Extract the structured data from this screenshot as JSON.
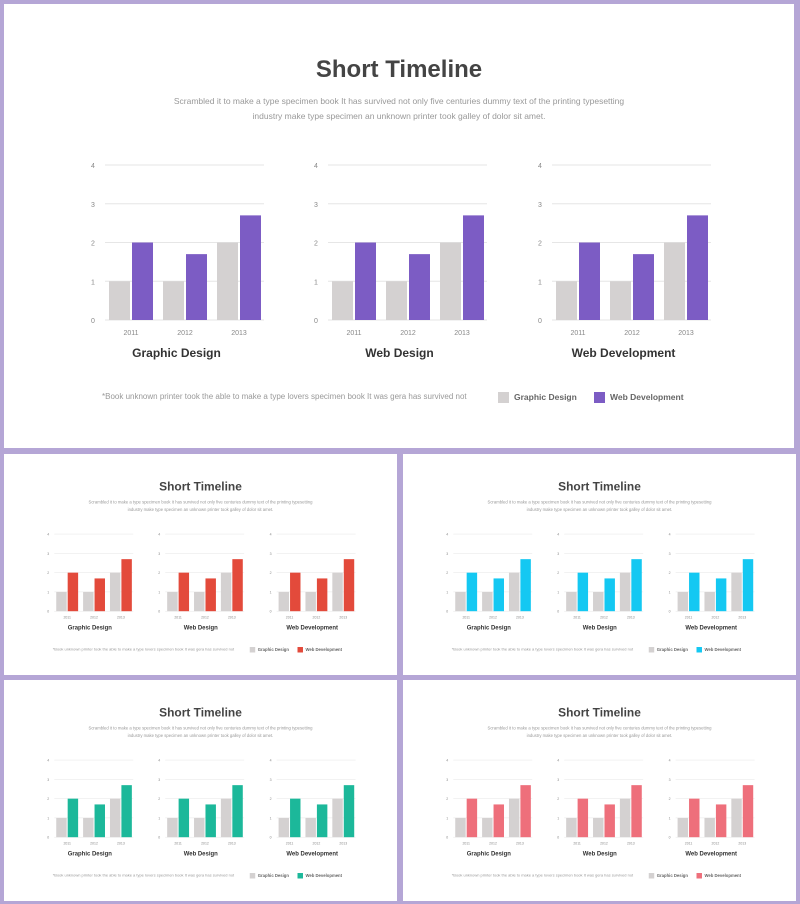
{
  "slides": [
    {
      "accent": "#7c5cc4"
    },
    {
      "accent": "#e34a3b"
    },
    {
      "accent": "#14c8f2"
    },
    {
      "accent": "#1cb89a"
    },
    {
      "accent": "#ee6f7b"
    }
  ],
  "base_color": "#d4d1d1",
  "title": "Short Timeline",
  "subtitle": "Scrambled it to make a type specimen book It has survived  not only five  centuries dummy text of the printing typesetting industry make type specimen an unknown printer took galley of dolor sit amet.",
  "footnote": "*Book unknown  printer took the able to make a type lovers  specimen book It was gera has survived  not",
  "legend": {
    "item1": "Graphic Design",
    "item2": "Web Development"
  },
  "chart_data": [
    {
      "type": "bar",
      "title": "Graphic Design",
      "categories": [
        "2011",
        "2012",
        "2013"
      ],
      "yticks": [
        "0",
        "1",
        "2",
        "3",
        "4"
      ],
      "ylim": [
        0,
        4
      ],
      "series": [
        {
          "name": "Graphic Design",
          "values": [
            1.0,
            1.0,
            2.0
          ]
        },
        {
          "name": "Web Development",
          "values": [
            2.0,
            1.7,
            2.7
          ]
        }
      ]
    },
    {
      "type": "bar",
      "title": "Web Design",
      "categories": [
        "2011",
        "2012",
        "2013"
      ],
      "yticks": [
        "0",
        "1",
        "2",
        "3",
        "4"
      ],
      "ylim": [
        0,
        4
      ],
      "series": [
        {
          "name": "Graphic Design",
          "values": [
            1.0,
            1.0,
            2.0
          ]
        },
        {
          "name": "Web Development",
          "values": [
            2.0,
            1.7,
            2.7
          ]
        }
      ]
    },
    {
      "type": "bar",
      "title": "Web Development",
      "categories": [
        "2011",
        "2012",
        "2013"
      ],
      "yticks": [
        "0",
        "1",
        "2",
        "3",
        "4"
      ],
      "ylim": [
        0,
        4
      ],
      "series": [
        {
          "name": "Graphic Design",
          "values": [
            1.0,
            1.0,
            2.0
          ]
        },
        {
          "name": "Web Development",
          "values": [
            2.0,
            1.7,
            2.7
          ]
        }
      ]
    }
  ]
}
